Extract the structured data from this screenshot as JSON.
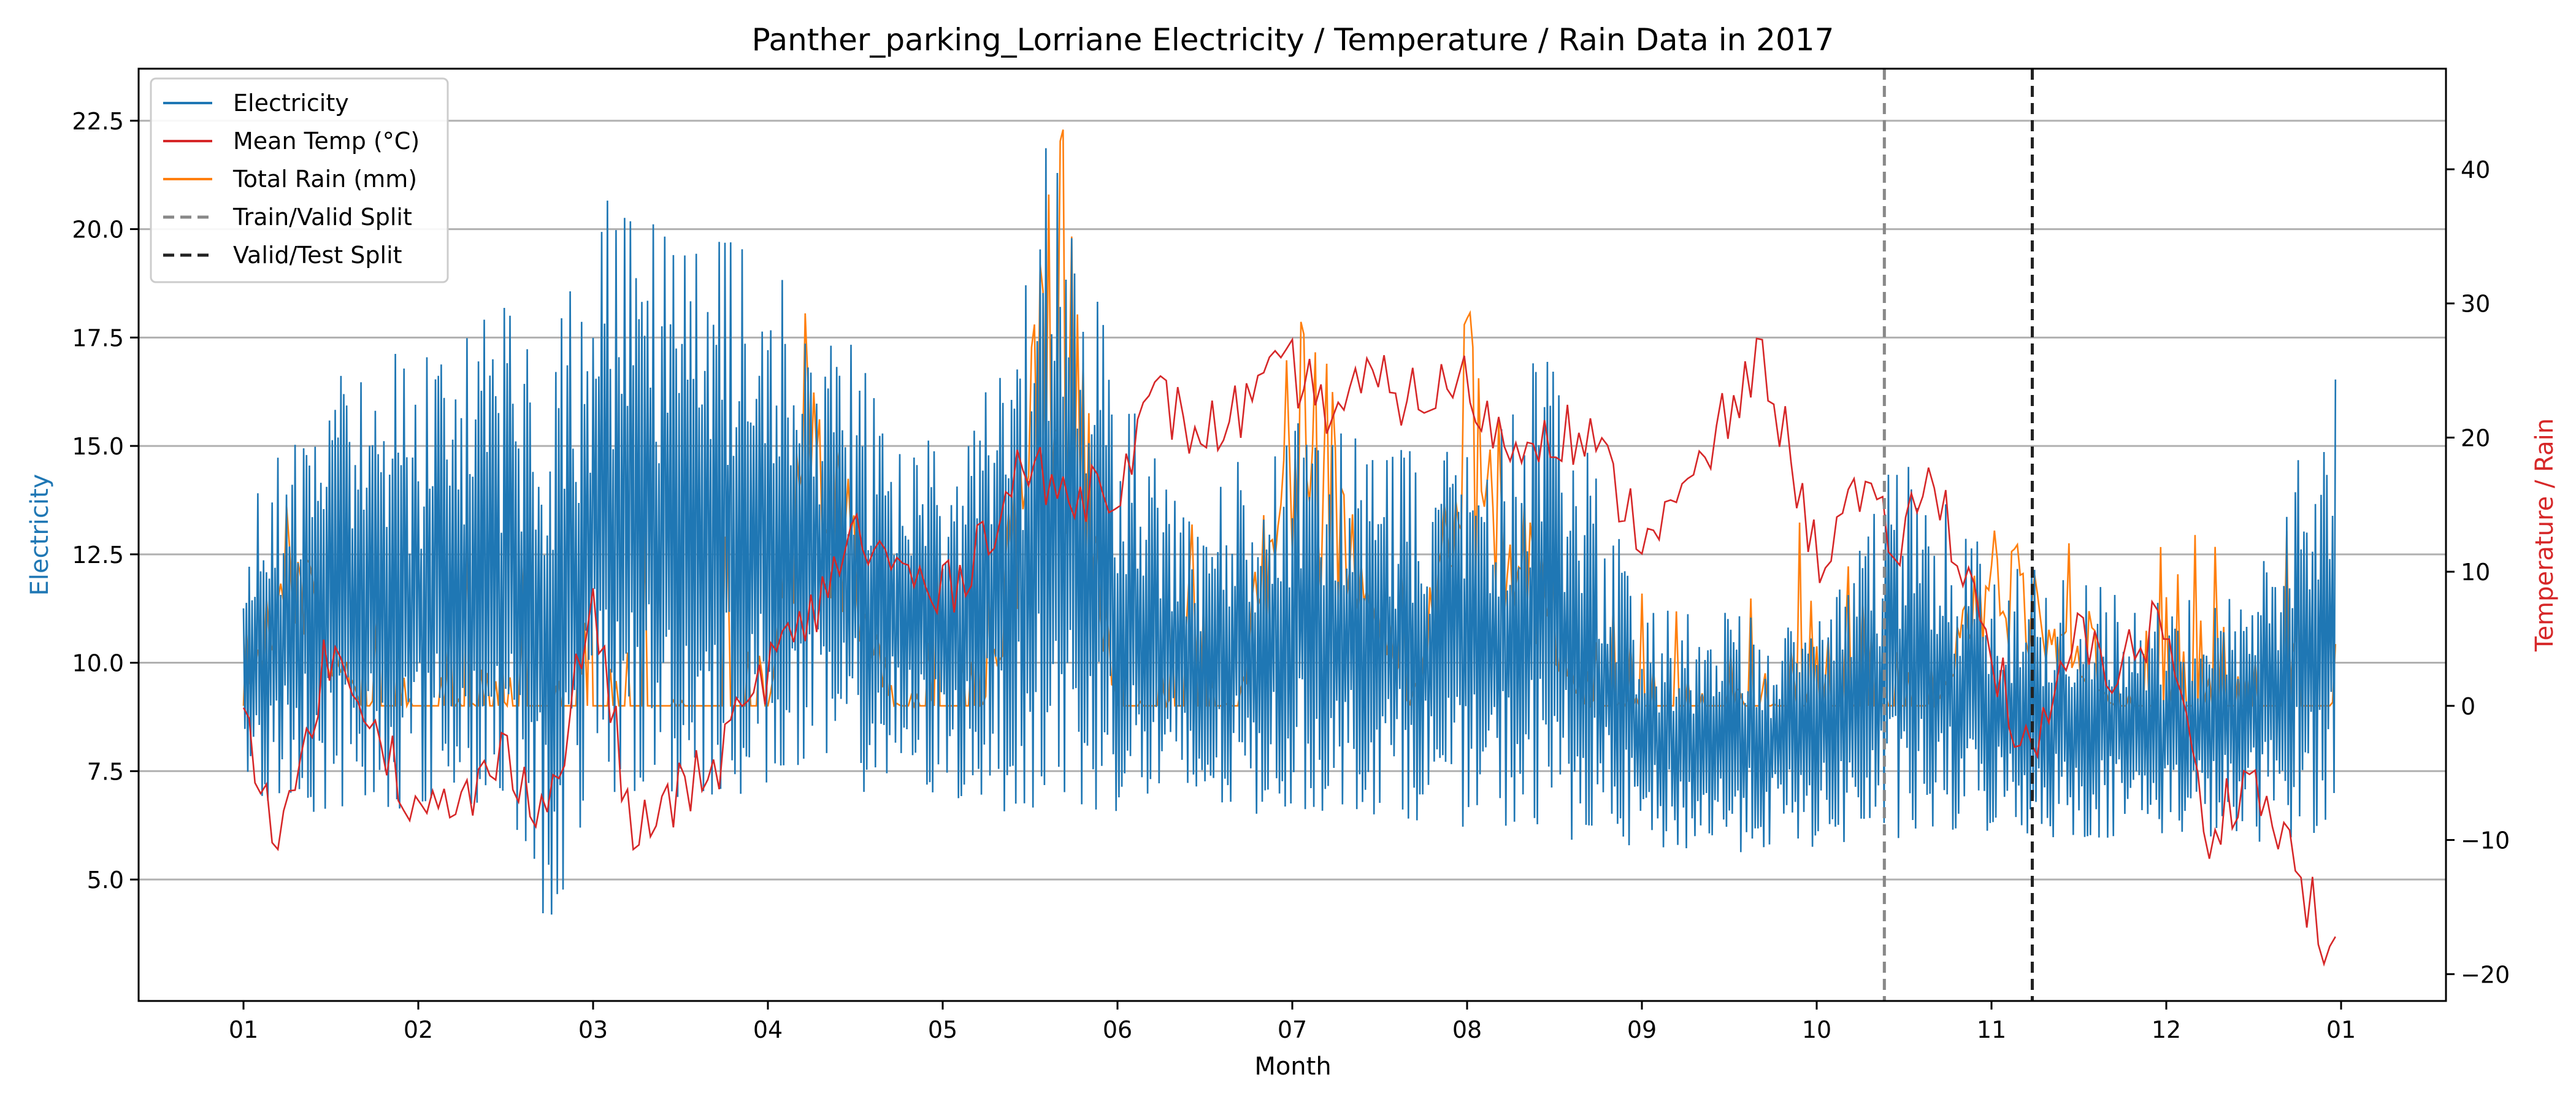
{
  "chart_data": {
    "type": "line",
    "title": "Panther_parking_Lorriane Electricity / Temperature / Rain Data in 2017",
    "xlabel": "Month",
    "ylabel_left": "Electricity",
    "ylabel_right": "Temperature / Rain",
    "x_ticks": [
      "01",
      "02",
      "03",
      "04",
      "05",
      "06",
      "07",
      "08",
      "09",
      "10",
      "11",
      "12",
      "01"
    ],
    "xlim_months": [
      0.4,
      13.6
    ],
    "ylim_left": [
      2.2,
      23.7
    ],
    "yticks_left": [
      "5.0",
      "7.5",
      "10.0",
      "12.5",
      "15.0",
      "17.5",
      "20.0",
      "22.5"
    ],
    "ylim_right": [
      -22.0,
      47.5
    ],
    "yticks_right": [
      "−20",
      "−10",
      "0",
      "10",
      "20",
      "30",
      "40"
    ],
    "grid": "horizontal (left axis)",
    "legend_position": "top-left",
    "colors": {
      "electricity": "#1f77b4",
      "temperature": "#d62728",
      "rain": "#ff7f0e",
      "train_valid_split": "#888888",
      "valid_test_split": "#222222"
    },
    "legend": {
      "electricity": "Electricity",
      "temperature": "Mean Temp (°C)",
      "rain": "Total Rain (mm)",
      "train_valid_split": "Train/Valid Split",
      "valid_test_split": "Valid/Test Split"
    },
    "splits": {
      "train_valid": "2017-10-13",
      "valid_test": "2017-11-08"
    },
    "electricity_series": {
      "name": "Electricity",
      "x": [
        "2017-01-01",
        "2017-01-15",
        "2017-02-01",
        "2017-02-15",
        "2017-02-22",
        "2017-03-01",
        "2017-03-15",
        "2017-04-01",
        "2017-04-15",
        "2017-05-01",
        "2017-05-15",
        "2017-05-20",
        "2017-06-01",
        "2017-06-15",
        "2017-07-01",
        "2017-07-15",
        "2017-08-01",
        "2017-08-15",
        "2017-09-01",
        "2017-09-15",
        "2017-10-01",
        "2017-10-15",
        "2017-11-01",
        "2017-11-15",
        "2017-12-01",
        "2017-12-15",
        "2017-12-31"
      ],
      "daily_max": [
        13.3,
        16.9,
        17.2,
        18.2,
        17.9,
        20.9,
        20.8,
        19.3,
        17.6,
        15.1,
        18.0,
        22.8,
        16.6,
        14.0,
        15.6,
        15.2,
        14.8,
        17.4,
        11.5,
        11.3,
        11.1,
        14.9,
        12.6,
        11.9,
        11.4,
        12.0,
        16.9
      ],
      "daily_min": [
        6.9,
        6.5,
        6.6,
        6.5,
        3.7,
        6.8,
        6.7,
        7.0,
        7.0,
        6.8,
        6.5,
        6.2,
        6.5,
        6.3,
        6.5,
        6.5,
        6.2,
        6.0,
        5.6,
        5.6,
        5.7,
        5.7,
        6.0,
        5.9,
        6.0,
        5.8,
        6.1
      ]
    },
    "temperature_series": {
      "name": "Mean Temp (°C)",
      "x": [
        "2017-01-01",
        "2017-01-08",
        "2017-01-15",
        "2017-01-22",
        "2017-02-01",
        "2017-02-08",
        "2017-02-15",
        "2017-02-22",
        "2017-03-01",
        "2017-03-08",
        "2017-03-15",
        "2017-03-22",
        "2017-04-01",
        "2017-04-08",
        "2017-04-15",
        "2017-04-22",
        "2017-05-01",
        "2017-05-08",
        "2017-05-15",
        "2017-05-22",
        "2017-06-01",
        "2017-06-08",
        "2017-06-15",
        "2017-06-22",
        "2017-07-01",
        "2017-07-08",
        "2017-07-15",
        "2017-07-22",
        "2017-08-01",
        "2017-08-08",
        "2017-08-15",
        "2017-08-22",
        "2017-09-01",
        "2017-09-08",
        "2017-09-15",
        "2017-09-22",
        "2017-10-01",
        "2017-10-08",
        "2017-10-15",
        "2017-10-22",
        "2017-11-01",
        "2017-11-08",
        "2017-11-15",
        "2017-11-22",
        "2017-12-01",
        "2017-12-08",
        "2017-12-15",
        "2017-12-22",
        "2017-12-31"
      ],
      "values": [
        -0.5,
        -10.5,
        3.2,
        1.5,
        -8.5,
        -7.5,
        -3.5,
        -8.0,
        8.0,
        -10.0,
        -7.0,
        -5.0,
        3.0,
        6.0,
        13.0,
        10.5,
        8.0,
        12.5,
        18.0,
        15.5,
        17.0,
        23.0,
        20.0,
        22.0,
        25.0,
        22.0,
        24.0,
        23.0,
        24.0,
        19.0,
        21.0,
        20.0,
        13.0,
        15.0,
        21.0,
        26.0,
        11.0,
        15.5,
        12.0,
        17.0,
        4.0,
        -5.0,
        5.0,
        3.0,
        6.5,
        -10.0,
        -5.0,
        -10.0,
        -19.5
      ]
    },
    "rain_series": {
      "name": "Total Rain (mm)",
      "x": [
        "2017-01-01",
        "2017-01-08",
        "2017-01-22",
        "2017-02-01",
        "2017-02-22",
        "2017-03-01",
        "2017-03-22",
        "2017-04-01",
        "2017-04-08",
        "2017-04-22",
        "2017-05-01",
        "2017-05-08",
        "2017-05-22",
        "2017-06-01",
        "2017-06-22",
        "2017-07-01",
        "2017-07-22",
        "2017-08-01",
        "2017-08-22",
        "2017-09-01",
        "2017-09-22",
        "2017-10-01",
        "2017-10-22",
        "2017-11-01",
        "2017-11-22",
        "2017-12-01",
        "2017-12-22",
        "2017-12-31"
      ],
      "values": [
        0,
        16.0,
        0,
        0,
        0,
        0,
        0,
        0,
        33.0,
        0,
        0,
        0,
        45.5,
        0,
        0,
        36.0,
        0,
        30.5,
        0,
        0,
        0,
        0,
        0,
        16.0,
        0,
        0,
        0,
        0
      ]
    }
  }
}
